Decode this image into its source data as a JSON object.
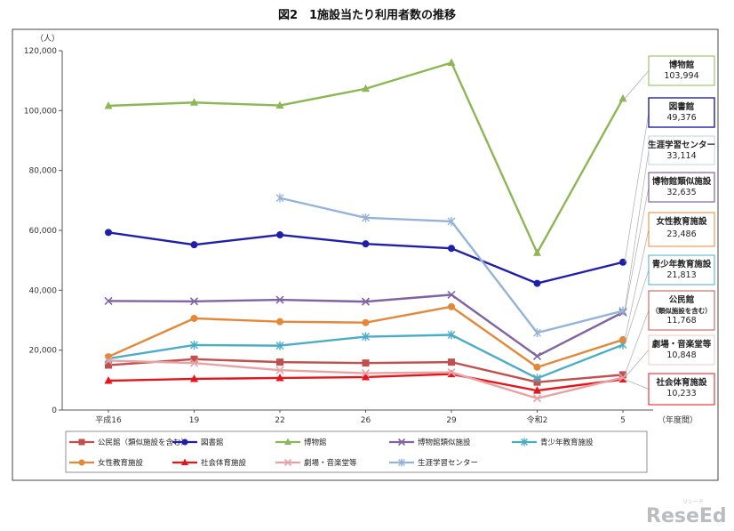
{
  "chart_data": {
    "type": "line",
    "title": "図2　1施設当たり利用者数の推移",
    "ylabel": "（人）",
    "xlabel": "（年度間）",
    "categories": [
      "平成16",
      "19",
      "22",
      "26",
      "29",
      "令和2",
      "5"
    ],
    "ylim": [
      0,
      120000
    ],
    "yticks": [
      "0",
      "20,000",
      "40,000",
      "60,000",
      "80,000",
      "100,000",
      "120,000"
    ],
    "grid": false,
    "legend_position": "bottom",
    "series": [
      {
        "name": "公民館（類似施設を含む）",
        "color": "#c0504d",
        "marker": "square",
        "values": [
          15000,
          17000,
          16000,
          15700,
          16000,
          9300,
          11768
        ],
        "callout": {
          "lines": [
            "公民館",
            "（類似施設を含む）",
            "11,768"
          ]
        }
      },
      {
        "name": "図書館",
        "color": "#1f1fa8",
        "marker": "circle",
        "values": [
          59300,
          55200,
          58500,
          55500,
          54000,
          42300,
          49376
        ],
        "callout": {
          "lines": [
            "図書館",
            "49,376"
          ]
        }
      },
      {
        "name": "博物館",
        "color": "#8db654",
        "marker": "triangle",
        "values": [
          101600,
          102700,
          101700,
          107300,
          116000,
          52500,
          103994
        ],
        "callout": {
          "lines": [
            "博物館",
            "103,994"
          ]
        }
      },
      {
        "name": "博物館類似施設",
        "color": "#8064a2",
        "marker": "x",
        "values": [
          36400,
          36300,
          36800,
          36200,
          38500,
          18000,
          32635
        ],
        "callout": {
          "lines": [
            "博物館類似施設",
            "32,635"
          ]
        }
      },
      {
        "name": "青少年教育施設",
        "color": "#4bacc6",
        "marker": "star",
        "values": [
          17200,
          21700,
          21500,
          24500,
          25100,
          10600,
          21813
        ],
        "callout": {
          "lines": [
            "青少年教育施設",
            "21,813"
          ]
        }
      },
      {
        "name": "女性教育施設",
        "color": "#e3883a",
        "marker": "circle",
        "values": [
          17800,
          30600,
          29500,
          29200,
          34500,
          14300,
          23486
        ],
        "callout": {
          "lines": [
            "女性教育施設",
            "23,486"
          ]
        }
      },
      {
        "name": "社会体育施設",
        "color": "#e5161b",
        "marker": "triangle",
        "values": [
          9800,
          10400,
          10700,
          11000,
          12000,
          6500,
          10233
        ],
        "callout": {
          "lines": [
            "社会体育施設",
            "10,233"
          ]
        }
      },
      {
        "name": "劇場・音楽堂等",
        "color": "#e6a3a6",
        "marker": "x",
        "values": [
          16500,
          15700,
          13300,
          12300,
          12600,
          3900,
          10848
        ],
        "callout": {
          "lines": [
            "劇場・音楽堂等",
            "10,848"
          ]
        }
      },
      {
        "name": "生涯学習センター",
        "color": "#95b3d7",
        "marker": "star",
        "values": [
          null,
          null,
          70800,
          64200,
          63000,
          25800,
          33114
        ],
        "callout": {
          "lines": [
            "生涯学習センター",
            "33,114"
          ]
        }
      }
    ]
  },
  "watermark": {
    "text": "ReseEd",
    "small": "リシード"
  }
}
